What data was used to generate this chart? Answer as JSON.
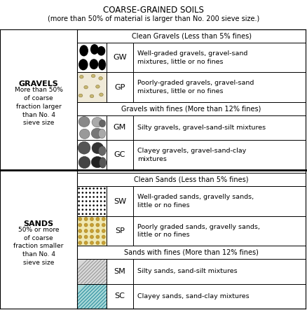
{
  "title1": "COARSE-GRAINED SOILS",
  "title2": "(more than 50% of material is larger than No. 200 sieve size.)",
  "gravels_label": "GRAVELS",
  "gravels_desc": "More than 50%\nof coarse\nfraction larger\nthan No. 4\nsieve size",
  "sands_label": "SANDS",
  "sands_desc": "50% or more\nof coarse\nfraction smaller\nthan No. 4\nsieve size",
  "clean_gravels_header": "Clean Gravels (Less than 5% fines)",
  "gravels_fines_header": "Gravels with fines (More than 12% fines)",
  "clean_sands_header": "Clean Sands (Less than 5% fines)",
  "sands_fines_header": "Sands with fines (More than 12% fines)",
  "rows": [
    {
      "symbol": "GW",
      "desc": "Well-graded gravels, gravel-sand\nmixtures, little or no fines"
    },
    {
      "symbol": "GP",
      "desc": "Poorly-graded gravels, gravel-sand\nmixtures, little or no fines"
    },
    {
      "symbol": "GM",
      "desc": "Silty gravels, gravel-sand-silt mixtures"
    },
    {
      "symbol": "GC",
      "desc": "Clayey gravels, gravel-sand-clay\nmixtures"
    },
    {
      "symbol": "SW",
      "desc": "Well-graded sands, gravelly sands,\nlittle or no fines"
    },
    {
      "symbol": "SP",
      "desc": "Poorly graded sands, gravelly sands,\nlittle or no fines"
    },
    {
      "symbol": "SM",
      "desc": "Silty sands, sand-silt mixtures"
    },
    {
      "symbol": "SC",
      "desc": "Clayey sands, sand-clay mixtures"
    }
  ]
}
